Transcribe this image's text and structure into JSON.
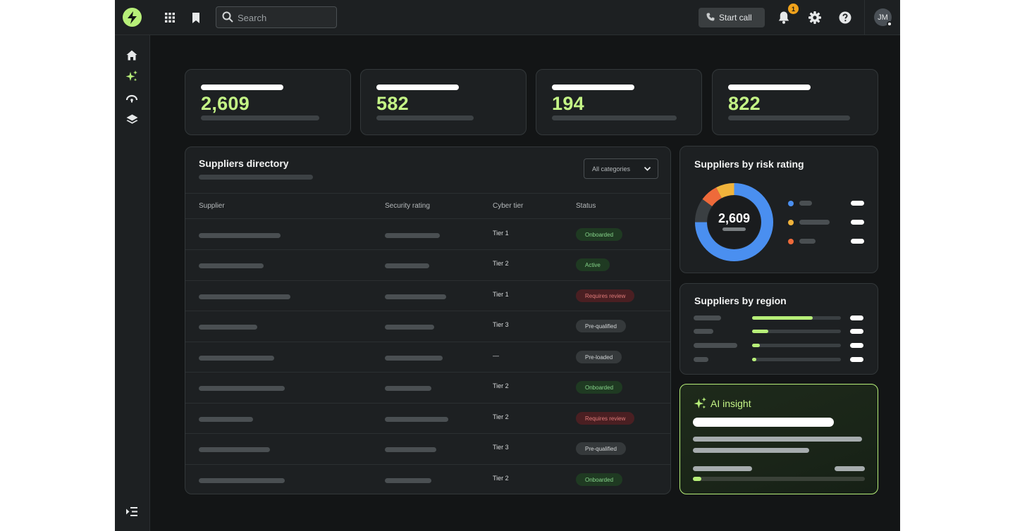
{
  "topbar": {
    "search_placeholder": "Search",
    "start_call_label": "Start call",
    "notification_count": "1",
    "avatar_initials": "JM"
  },
  "stats": [
    {
      "value": "2,609"
    },
    {
      "value": "582"
    },
    {
      "value": "194"
    },
    {
      "value": "822"
    }
  ],
  "directory": {
    "title": "Suppliers directory",
    "filter_value": "All categories",
    "columns": [
      "Supplier",
      "Security rating",
      "Cyber tier",
      "Status"
    ],
    "rows": [
      {
        "tier": "Tier 1",
        "status": "Onboarded"
      },
      {
        "tier": "Tier 2",
        "status": "Active"
      },
      {
        "tier": "Tier 1",
        "status": "Requires review"
      },
      {
        "tier": "Tier 3",
        "status": "Pre-qualified"
      },
      {
        "tier": "—",
        "status": "Pre-loaded"
      },
      {
        "tier": "Tier 2",
        "status": "Onboarded"
      },
      {
        "tier": "Tier 2",
        "status": "Requires review"
      },
      {
        "tier": "Tier 3",
        "status": "Pre-qualified"
      },
      {
        "tier": "Tier 2",
        "status": "Onboarded"
      }
    ]
  },
  "risk": {
    "title": "Suppliers by risk rating",
    "total": "2,609",
    "colors": [
      "#4a8ff0",
      "#f0b33b",
      "#ee6a3a",
      "#3a3f42"
    ]
  },
  "region": {
    "title": "Suppliers by region",
    "fill_fractions": [
      0.68,
      0.18,
      0.09,
      0.05
    ]
  },
  "ai_insight": {
    "title": "AI insight",
    "progress_fraction": 0.05
  },
  "colors": {
    "accent": "#b7ef79",
    "badge": "#f0a21b"
  }
}
